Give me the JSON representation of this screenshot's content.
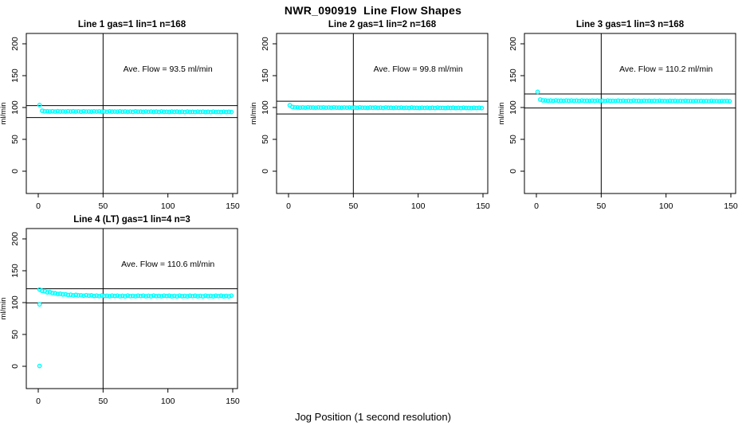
{
  "figure_title": "NWR_090919  Line Flow Shapes",
  "xlabel": "Jog Position (1 second resolution)",
  "colors": {
    "points": "#00FFFF",
    "axis": "#000000",
    "background": "#FFFFFF"
  },
  "chart_data": [
    {
      "type": "scatter",
      "title": "Line 1 gas=1 lin=1 n=168",
      "annotation": "Ave. Flow =  93.5  ml/min",
      "ave_flow": 93.5,
      "n": 168,
      "ylabel": "ml/min",
      "xlim": [
        0,
        150
      ],
      "ylim": [
        0,
        200
      ],
      "xticks": [
        0,
        50,
        100,
        150
      ],
      "yticks": [
        0,
        50,
        100,
        150,
        200
      ],
      "vline_x": 50,
      "hlines": [
        102.9,
        84.2
      ],
      "grid": false,
      "legend": "none",
      "x_first": 1,
      "x_step": 2,
      "y": [
        103.9,
        94.9,
        94.0,
        94.1,
        93.7,
        94.0,
        93.6,
        94.2,
        93.7,
        93.8,
        93.6,
        94.0,
        93.7,
        94.0,
        93.6,
        93.9,
        93.4,
        94.0,
        93.6,
        93.7,
        93.5,
        93.9,
        93.6,
        93.9,
        93.4,
        93.7,
        93.3,
        93.9,
        93.5,
        93.6,
        93.4,
        93.8,
        93.4,
        93.7,
        93.3,
        93.6,
        93.2,
        93.8,
        93.4,
        93.5,
        93.2,
        93.6,
        93.3,
        93.6,
        93.2,
        93.5,
        93.1,
        93.7,
        93.2,
        93.3,
        93.1,
        93.5,
        93.2,
        93.5,
        93.1,
        93.4,
        92.9,
        93.5,
        93.1,
        93.2,
        93.0,
        93.4,
        93.1,
        93.4,
        92.9,
        93.2,
        92.8,
        93.4,
        93.0,
        93.1,
        92.9,
        93.3,
        92.9,
        93.2,
        92.8
      ],
      "extra_points": []
    },
    {
      "type": "scatter",
      "title": "Line 2 gas=1 lin=2 n=168",
      "annotation": "Ave. Flow =  99.8  ml/min",
      "ave_flow": 99.8,
      "n": 168,
      "ylabel": "ml/min",
      "xlim": [
        0,
        150
      ],
      "ylim": [
        0,
        200
      ],
      "xticks": [
        0,
        50,
        100,
        150
      ],
      "yticks": [
        0,
        50,
        100,
        150,
        200
      ],
      "vline_x": 50,
      "hlines": [
        109.8,
        89.8
      ],
      "grid": false,
      "legend": "none",
      "x_first": 1,
      "x_step": 2,
      "y": [
        103.5,
        100.8,
        100.2,
        100.2,
        99.8,
        100.1,
        99.7,
        100.3,
        99.9,
        99.9,
        99.7,
        100.1,
        99.8,
        100.1,
        99.7,
        100.0,
        99.6,
        100.2,
        99.8,
        99.8,
        99.6,
        100.0,
        99.7,
        100.0,
        99.6,
        99.9,
        99.5,
        100.1,
        99.7,
        99.7,
        99.5,
        99.9,
        99.6,
        99.9,
        99.5,
        99.8,
        99.4,
        100.0,
        99.6,
        99.6,
        99.4,
        99.8,
        99.5,
        99.8,
        99.4,
        99.7,
        99.3,
        99.9,
        99.5,
        99.5,
        99.3,
        99.7,
        99.4,
        99.7,
        99.3,
        99.6,
        99.2,
        99.8,
        99.4,
        99.4,
        99.2,
        99.6,
        99.3,
        99.6,
        99.2,
        99.5,
        99.1,
        99.7,
        99.3,
        99.3,
        99.1,
        99.5,
        99.2,
        99.5,
        99.1
      ],
      "extra_points": []
    },
    {
      "type": "scatter",
      "title": "Line 3 gas=1 lin=3 n=168",
      "annotation": "Ave. Flow =  110.2  ml/min",
      "ave_flow": 110.2,
      "n": 168,
      "ylabel": "ml/min",
      "xlim": [
        0,
        150
      ],
      "ylim": [
        0,
        200
      ],
      "xticks": [
        0,
        50,
        100,
        150
      ],
      "yticks": [
        0,
        50,
        100,
        150,
        200
      ],
      "vline_x": 50,
      "hlines": [
        121.2,
        99.2
      ],
      "grid": false,
      "legend": "none",
      "x_first": 1,
      "x_step": 2,
      "y": [
        124.5,
        112.5,
        111.2,
        111.0,
        110.6,
        110.9,
        110.5,
        111.1,
        110.6,
        110.7,
        110.5,
        110.9,
        110.6,
        110.9,
        110.5,
        110.8,
        110.3,
        110.9,
        110.5,
        110.6,
        110.4,
        110.8,
        110.5,
        110.8,
        110.3,
        110.6,
        110.2,
        110.8,
        110.4,
        110.5,
        110.3,
        110.7,
        110.3,
        110.6,
        110.2,
        110.5,
        110.1,
        110.7,
        110.3,
        110.4,
        110.1,
        110.5,
        110.2,
        110.5,
        110.1,
        110.4,
        110.0,
        110.6,
        110.2,
        110.2,
        110.0,
        110.4,
        110.1,
        110.4,
        110.0,
        110.3,
        109.9,
        110.5,
        110.1,
        110.1,
        109.9,
        110.3,
        110.0,
        110.3,
        109.9,
        110.2,
        109.8,
        110.4,
        110.0,
        110.0,
        109.8,
        110.2,
        109.9,
        110.2,
        109.8
      ],
      "extra_points": []
    },
    {
      "type": "scatter",
      "title": "Line 4 (LT) gas=1 lin=4 n=3",
      "annotation": "Ave. Flow =  110.6  ml/min",
      "ave_flow": 110.6,
      "n": 3,
      "ylabel": "ml/min",
      "xlim": [
        0,
        150
      ],
      "ylim": [
        0,
        200
      ],
      "xticks": [
        0,
        50,
        100,
        150
      ],
      "yticks": [
        0,
        50,
        100,
        150,
        200
      ],
      "vline_x": 50,
      "hlines": [
        121.7,
        99.5
      ],
      "grid": false,
      "legend": "none",
      "x_first": 1,
      "x_step": 2,
      "y": [
        120.5,
        118.4,
        117.9,
        116.2,
        116.3,
        114.9,
        114.6,
        113.5,
        113.8,
        112.9,
        113.0,
        111.9,
        112.3,
        111.3,
        112.1,
        111.3,
        111.4,
        110.8,
        111.5,
        110.9,
        111.3,
        110.4,
        110.9,
        110.2,
        111.1,
        110.4,
        110.6,
        110.1,
        110.9,
        110.4,
        110.8,
        110.0,
        110.6,
        109.9,
        110.9,
        110.2,
        110.5,
        110.0,
        110.8,
        110.3,
        110.8,
        110.0,
        110.6,
        109.9,
        110.9,
        110.2,
        110.5,
        110.0,
        110.8,
        110.3,
        110.7,
        109.9,
        110.5,
        109.8,
        110.8,
        110.1,
        110.4,
        109.9,
        110.7,
        110.2,
        110.7,
        109.9,
        110.5,
        109.8,
        110.8,
        110.1,
        110.4,
        109.9,
        110.7,
        110.2,
        110.7,
        109.9,
        110.5,
        109.8,
        110.8
      ],
      "extra_points": [
        [
          1,
          0.5
        ],
        [
          1,
          97.2
        ]
      ]
    }
  ]
}
